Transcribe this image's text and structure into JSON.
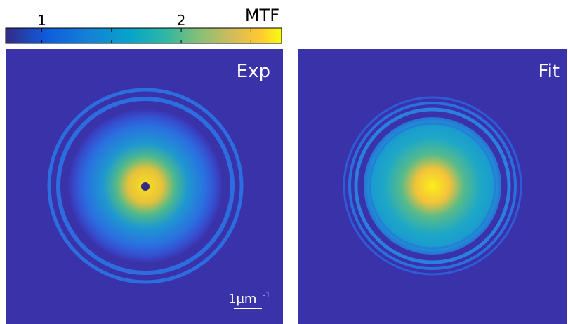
{
  "chart_data": {
    "type": "heatmap",
    "colorbar": {
      "label": "MTF",
      "lim": [
        0.74,
        2.72
      ],
      "ticks": [
        1,
        2
      ],
      "minor_ticks": [
        1.5,
        2.5
      ]
    },
    "panels": [
      {
        "title": "Exp"
      },
      {
        "title": "Fit"
      }
    ],
    "scale_bar": {
      "label": "1μm",
      "exponent": "-1"
    }
  }
}
